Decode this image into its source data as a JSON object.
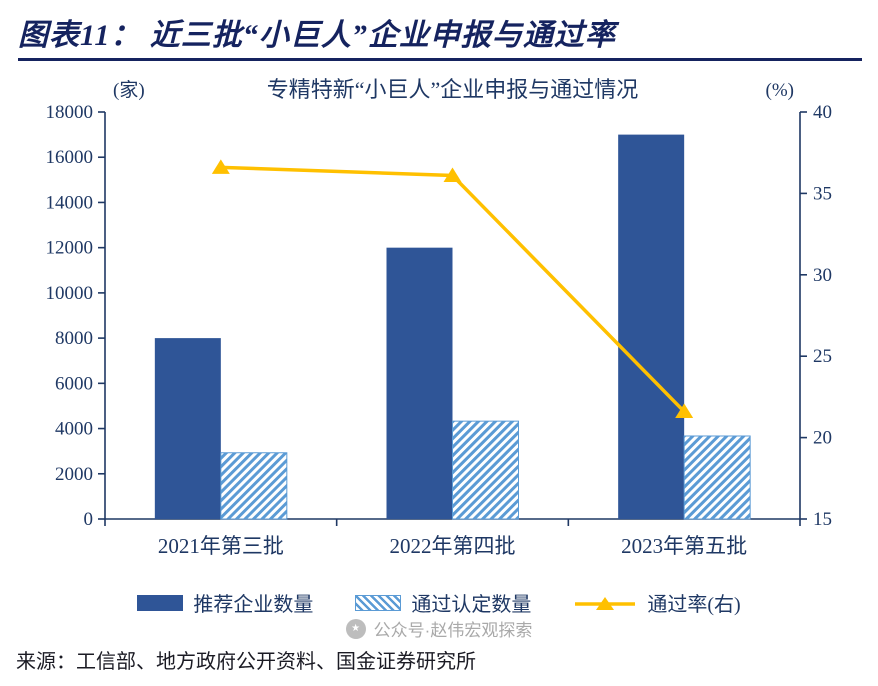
{
  "header": {
    "title": "图表11： 近三批“小巨人”企业申报与通过率"
  },
  "chart_data": {
    "type": "bar",
    "subtype": "combo-bar-line-dual-axis",
    "title": "专精特新“小巨人”企业申报与通过情况",
    "left_axis_unit": "(家)",
    "right_axis_unit": "(%)",
    "categories": [
      "2021年第三批",
      "2022年第四批",
      "2023年第五批"
    ],
    "series": [
      {
        "name": "推荐企业数量",
        "type": "bar",
        "style": "solid",
        "axis": "left",
        "values": [
          8000,
          12000,
          17000
        ]
      },
      {
        "name": "通过认定数量",
        "type": "bar",
        "style": "hatched",
        "axis": "left",
        "values": [
          2930,
          4328,
          3671
        ]
      },
      {
        "name": "通过率(右)",
        "type": "line",
        "marker": "triangle",
        "axis": "right",
        "values": [
          36.6,
          36.1,
          21.6
        ]
      }
    ],
    "left_axis": {
      "min": 0,
      "max": 18000,
      "step": 2000
    },
    "right_axis": {
      "min": 15,
      "max": 40,
      "step": 5
    },
    "grid": false,
    "legend_position": "bottom",
    "colors": {
      "bar_solid": "#2F5597",
      "bar_hatch": "#5B9BD5",
      "line": "#FFC000",
      "axis_text": "#1F3864",
      "title_text": "#15235F"
    }
  },
  "legend": [
    {
      "label": "推荐企业数量",
      "swatch": "bar-solid"
    },
    {
      "label": "通过认定数量",
      "swatch": "bar-hatched"
    },
    {
      "label": "通过率(右)",
      "swatch": "line-triangle-marker"
    }
  ],
  "footer": {
    "source": "来源：工信部、地方政府公开资料、国金证券研究所",
    "watermark": "公众号·赵伟宏观探索",
    "watermark_icon": "★"
  }
}
